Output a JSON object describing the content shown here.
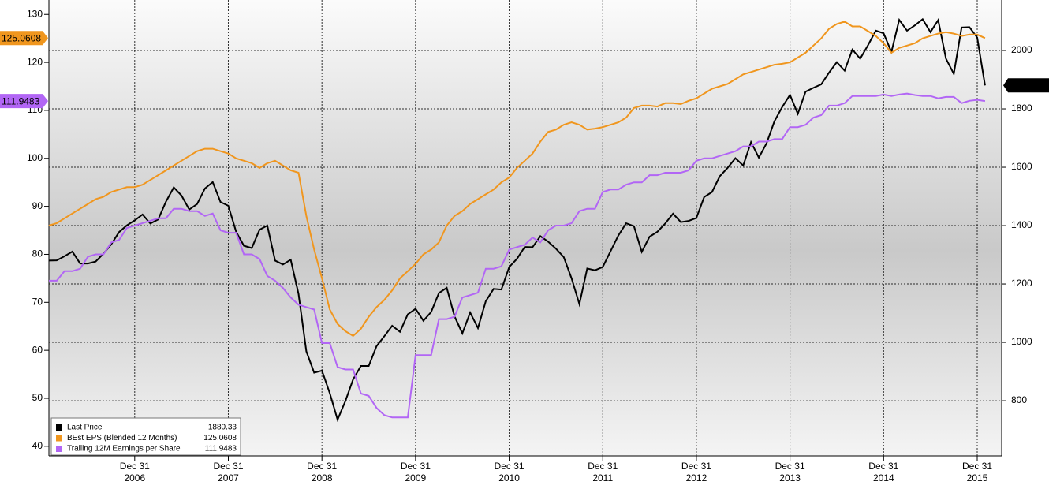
{
  "chart_data": {
    "type": "line",
    "categories": [
      null,
      null,
      null,
      null,
      null,
      null,
      null,
      null,
      null,
      null,
      null,
      "2006",
      null,
      null,
      null,
      null,
      null,
      null,
      null,
      null,
      null,
      null,
      null,
      "2007",
      null,
      null,
      null,
      null,
      null,
      null,
      null,
      null,
      null,
      null,
      null,
      "2008",
      null,
      null,
      null,
      null,
      null,
      null,
      null,
      null,
      null,
      null,
      null,
      "2009",
      null,
      null,
      null,
      null,
      null,
      null,
      null,
      null,
      null,
      null,
      null,
      "2010",
      null,
      null,
      null,
      null,
      null,
      null,
      null,
      null,
      null,
      null,
      null,
      "2011",
      null,
      null,
      null,
      null,
      null,
      null,
      null,
      null,
      null,
      null,
      null,
      "2012",
      null,
      null,
      null,
      null,
      null,
      null,
      null,
      null,
      null,
      null,
      null,
      "2013",
      null,
      null,
      null,
      null,
      null,
      null,
      null,
      null,
      null,
      null,
      null,
      "2014",
      null,
      null,
      null,
      null,
      null,
      null,
      null,
      null,
      null,
      null,
      null,
      "2015",
      null
    ],
    "x_tick_day": "Dec 31",
    "ylim": [
      38,
      133
    ],
    "yticks": [
      40,
      50,
      60,
      70,
      80,
      90,
      100,
      110,
      120,
      130
    ],
    "y2lim": [
      611,
      2173
    ],
    "y2ticks": [
      800,
      1000,
      1200,
      1400,
      1600,
      1800,
      2000
    ],
    "grid": "y2",
    "legend": "lower left",
    "series": [
      {
        "name": "Last Price",
        "color": "#000000",
        "axis": "y2",
        "values": [
          1280,
          1281,
          1295,
          1311,
          1270,
          1270,
          1277,
          1304,
          1336,
          1378,
          1401,
          1418,
          1438,
          1407,
          1421,
          1482,
          1531,
          1503,
          1455,
          1474,
          1527,
          1549,
          1481,
          1468,
          1379,
          1331,
          1323,
          1386,
          1400,
          1280,
          1267,
          1283,
          1166,
          969,
          896,
          903,
          826,
          735,
          798,
          873,
          919,
          919,
          987,
          1021,
          1057,
          1036,
          1096,
          1115,
          1074,
          1104,
          1169,
          1187,
          1089,
          1031,
          1102,
          1049,
          1141,
          1183,
          1181,
          1258,
          1286,
          1327,
          1326,
          1364,
          1345,
          1321,
          1292,
          1219,
          1131,
          1253,
          1247,
          1258,
          1312,
          1366,
          1408,
          1398,
          1310,
          1362,
          1379,
          1407,
          1441,
          1412,
          1416,
          1426,
          1498,
          1515,
          1569,
          1598,
          1631,
          1606,
          1686,
          1633,
          1682,
          1757,
          1806,
          1848,
          1783,
          1859,
          1872,
          1884,
          1924,
          1960,
          1931,
          2003,
          1972,
          2018,
          2068,
          2059,
          1995,
          2105,
          2068,
          2086,
          2107,
          2063,
          2104,
          1972,
          1920,
          2079,
          2080,
          2044,
          1880.33
        ]
      },
      {
        "name": "BEst EPS (Blended 12 Months)",
        "color": "#f0961e",
        "values": [
          86,
          86.5,
          87.5,
          88.5,
          89.5,
          90.5,
          91.5,
          92,
          93,
          93.5,
          94,
          94,
          94.5,
          95.5,
          96.5,
          97.5,
          98.5,
          99.5,
          100.5,
          101.5,
          102,
          102,
          101.5,
          101,
          100,
          99.5,
          99,
          98,
          99,
          99.5,
          98.5,
          97.5,
          97,
          88,
          81,
          75,
          68.5,
          65.5,
          64,
          63,
          64.5,
          67,
          69,
          70.5,
          72.5,
          75,
          76.5,
          78,
          80,
          81,
          82.5,
          86,
          88,
          89,
          90.5,
          91.5,
          92.5,
          93.5,
          95,
          96,
          98,
          99.5,
          101,
          103.5,
          105.5,
          106,
          107,
          107.5,
          107,
          106,
          106.2,
          106.5,
          107,
          107.5,
          108.5,
          110.5,
          111,
          111,
          110.8,
          111.5,
          111.5,
          111.3,
          112,
          112.5,
          113.5,
          114.5,
          115,
          115.5,
          116.5,
          117.5,
          118,
          118.5,
          119,
          119.5,
          119.7,
          120,
          121,
          122,
          123.5,
          125,
          127,
          128,
          128.5,
          127.5,
          127.5,
          126.5,
          125.5,
          124,
          122,
          123,
          123.5,
          124,
          125,
          125.5,
          126,
          126.3,
          126,
          125.5,
          125.8,
          125.8,
          125.0608
        ]
      },
      {
        "name": "Trailing 12M Earnings per Share",
        "color": "#b266f5",
        "values": [
          74.5,
          74.5,
          76.5,
          76.5,
          77,
          79.5,
          80,
          80,
          82.5,
          83,
          85.5,
          86,
          86.5,
          87,
          87.5,
          87.5,
          89.5,
          89.5,
          89,
          89,
          88,
          88.5,
          85,
          84.5,
          84.5,
          80,
          80,
          79,
          75.5,
          74.5,
          73,
          71,
          69.5,
          69,
          68.5,
          61.5,
          61.5,
          56.5,
          56,
          56,
          51,
          50.5,
          48,
          46.5,
          46,
          46,
          46,
          59,
          59,
          59,
          66.5,
          66.5,
          67,
          71,
          71.5,
          72,
          77,
          77,
          77.5,
          81,
          81.5,
          82,
          83.5,
          82.5,
          85,
          86,
          86,
          86.5,
          89,
          89.5,
          89.5,
          93,
          93.5,
          93.5,
          94.5,
          95,
          95,
          96.5,
          96.5,
          97,
          97,
          97,
          97.5,
          99.5,
          100,
          100,
          100.5,
          101,
          101.5,
          102.5,
          102.5,
          103.5,
          103.5,
          104,
          104,
          106.5,
          106.5,
          107,
          108.5,
          109,
          111,
          111,
          111.5,
          113,
          113,
          113,
          113,
          113.3,
          113,
          113.3,
          113.5,
          113.2,
          113,
          113,
          112.5,
          112.8,
          112.8,
          111.5,
          112,
          112.2,
          111.9483
        ]
      }
    ]
  }
}
